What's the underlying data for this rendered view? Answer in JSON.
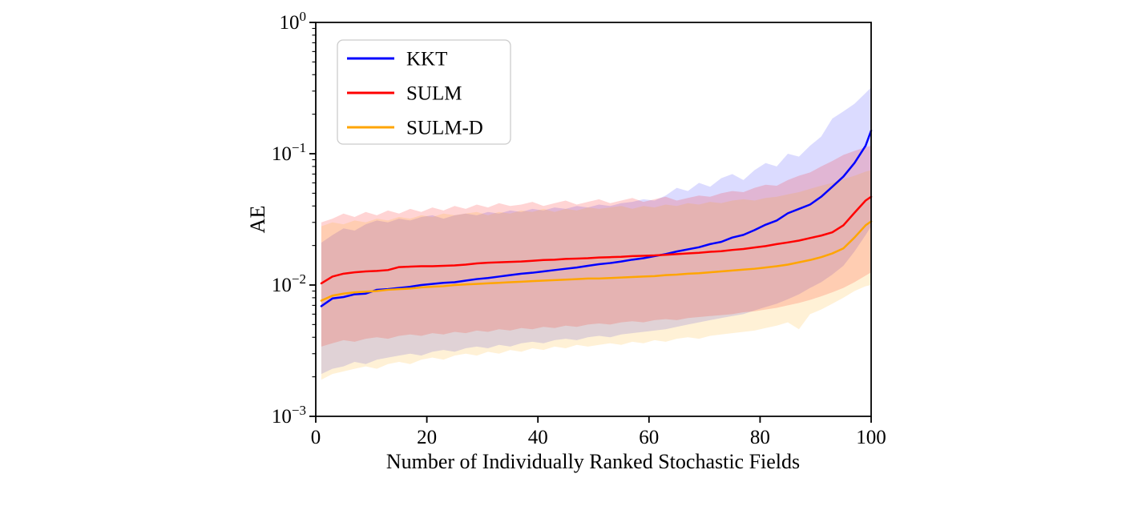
{
  "chart_data": {
    "type": "line",
    "title": "",
    "xlabel": "Number of Individually Ranked Stochastic Fields",
    "ylabel": "AE",
    "xlim": [
      0,
      100
    ],
    "ylim_log10": [
      -3,
      0
    ],
    "x_ticks": [
      0,
      20,
      40,
      60,
      80,
      100
    ],
    "y_tick_exponents": [
      0,
      -1,
      -2,
      -3
    ],
    "y_scale": "log",
    "grid": false,
    "legend_position": "upper-left",
    "axis_color": "#000000",
    "legend_border_color": "#cccccc",
    "x": [
      1,
      3,
      5,
      7,
      9,
      11,
      13,
      15,
      17,
      19,
      21,
      23,
      25,
      27,
      29,
      31,
      33,
      35,
      37,
      39,
      41,
      43,
      45,
      47,
      49,
      51,
      53,
      55,
      57,
      59,
      61,
      63,
      65,
      67,
      69,
      71,
      73,
      75,
      77,
      79,
      81,
      83,
      85,
      87,
      89,
      91,
      93,
      95,
      97,
      99,
      100
    ],
    "series": [
      {
        "name": "KKT",
        "color": "#0000ff",
        "band_opacity": 0.14,
        "values": [
          0.0069,
          0.0079,
          0.0081,
          0.0085,
          0.0086,
          0.0092,
          0.0093,
          0.0095,
          0.0097,
          0.01,
          0.0102,
          0.0104,
          0.0105,
          0.0108,
          0.0111,
          0.0113,
          0.0116,
          0.0119,
          0.0122,
          0.0124,
          0.0127,
          0.013,
          0.0133,
          0.0136,
          0.014,
          0.0144,
          0.0147,
          0.0151,
          0.0156,
          0.016,
          0.0166,
          0.0172,
          0.018,
          0.0187,
          0.0194,
          0.0205,
          0.0213,
          0.023,
          0.0241,
          0.0262,
          0.0288,
          0.031,
          0.0352,
          0.038,
          0.041,
          0.047,
          0.056,
          0.067,
          0.085,
          0.115,
          0.15
        ],
        "band_upper": [
          0.021,
          0.024,
          0.027,
          0.026,
          0.029,
          0.031,
          0.03,
          0.032,
          0.031,
          0.033,
          0.034,
          0.032,
          0.034,
          0.035,
          0.034,
          0.036,
          0.035,
          0.037,
          0.036,
          0.038,
          0.037,
          0.039,
          0.038,
          0.04,
          0.039,
          0.041,
          0.04,
          0.042,
          0.043,
          0.045,
          0.044,
          0.048,
          0.055,
          0.052,
          0.06,
          0.056,
          0.065,
          0.07,
          0.063,
          0.075,
          0.085,
          0.08,
          0.1,
          0.095,
          0.115,
          0.135,
          0.185,
          0.21,
          0.24,
          0.29,
          0.32
        ],
        "band_lower": [
          0.0021,
          0.0023,
          0.0024,
          0.0026,
          0.0025,
          0.0027,
          0.0028,
          0.0029,
          0.003,
          0.0029,
          0.0031,
          0.0032,
          0.0031,
          0.0033,
          0.0034,
          0.0033,
          0.0035,
          0.0034,
          0.0036,
          0.0037,
          0.0036,
          0.0038,
          0.0039,
          0.0038,
          0.004,
          0.0041,
          0.004,
          0.0042,
          0.0043,
          0.0044,
          0.0045,
          0.0046,
          0.0048,
          0.005,
          0.0052,
          0.0054,
          0.0056,
          0.0058,
          0.006,
          0.0064,
          0.0068,
          0.0072,
          0.0078,
          0.0085,
          0.0095,
          0.0105,
          0.012,
          0.014,
          0.018,
          0.024,
          0.028
        ]
      },
      {
        "name": "SULM",
        "color": "#ff0000",
        "band_opacity": 0.17,
        "values": [
          0.0103,
          0.0116,
          0.0122,
          0.0125,
          0.0127,
          0.0128,
          0.013,
          0.0137,
          0.0138,
          0.0139,
          0.0139,
          0.014,
          0.0141,
          0.0143,
          0.0146,
          0.0148,
          0.0149,
          0.015,
          0.0151,
          0.0153,
          0.0155,
          0.0156,
          0.0158,
          0.0159,
          0.016,
          0.0162,
          0.0163,
          0.0164,
          0.0166,
          0.0167,
          0.0168,
          0.017,
          0.0172,
          0.0174,
          0.0176,
          0.0179,
          0.0181,
          0.0185,
          0.0188,
          0.0193,
          0.0198,
          0.0205,
          0.0211,
          0.0218,
          0.0228,
          0.0238,
          0.0252,
          0.0285,
          0.0355,
          0.044,
          0.047
        ],
        "band_upper": [
          0.03,
          0.032,
          0.035,
          0.033,
          0.036,
          0.034,
          0.037,
          0.035,
          0.038,
          0.036,
          0.039,
          0.037,
          0.04,
          0.038,
          0.041,
          0.039,
          0.042,
          0.04,
          0.041,
          0.043,
          0.04,
          0.042,
          0.044,
          0.041,
          0.043,
          0.045,
          0.042,
          0.044,
          0.046,
          0.043,
          0.045,
          0.047,
          0.044,
          0.046,
          0.048,
          0.047,
          0.05,
          0.052,
          0.051,
          0.055,
          0.058,
          0.057,
          0.063,
          0.068,
          0.072,
          0.08,
          0.088,
          0.098,
          0.105,
          0.112,
          0.115
        ],
        "band_lower": [
          0.0034,
          0.0036,
          0.0038,
          0.0037,
          0.0039,
          0.004,
          0.0039,
          0.0041,
          0.0042,
          0.0041,
          0.0043,
          0.0042,
          0.0044,
          0.0043,
          0.0045,
          0.0044,
          0.0046,
          0.0045,
          0.0047,
          0.0046,
          0.0048,
          0.0047,
          0.0049,
          0.0048,
          0.005,
          0.0051,
          0.005,
          0.0052,
          0.0053,
          0.0052,
          0.0054,
          0.0055,
          0.0054,
          0.0056,
          0.0057,
          0.0058,
          0.0059,
          0.006,
          0.0062,
          0.0063,
          0.0065,
          0.0067,
          0.007,
          0.0073,
          0.0077,
          0.0082,
          0.0088,
          0.0095,
          0.0105,
          0.0118,
          0.0125
        ]
      },
      {
        "name": "SULM-D",
        "color": "#ffa500",
        "band_opacity": 0.16,
        "values": [
          0.0076,
          0.0083,
          0.0086,
          0.0088,
          0.0089,
          0.009,
          0.0092,
          0.0093,
          0.0094,
          0.0096,
          0.0097,
          0.0098,
          0.01,
          0.0101,
          0.0102,
          0.0103,
          0.0104,
          0.0105,
          0.0106,
          0.0107,
          0.0108,
          0.0109,
          0.011,
          0.0111,
          0.0112,
          0.0112,
          0.0113,
          0.0114,
          0.0115,
          0.0116,
          0.0117,
          0.0119,
          0.012,
          0.0122,
          0.0123,
          0.0125,
          0.0127,
          0.0129,
          0.0131,
          0.0133,
          0.0136,
          0.0139,
          0.0143,
          0.0149,
          0.0155,
          0.0163,
          0.0174,
          0.019,
          0.023,
          0.0285,
          0.0305
        ],
        "band_upper": [
          0.028,
          0.03,
          0.029,
          0.031,
          0.03,
          0.032,
          0.031,
          0.033,
          0.032,
          0.034,
          0.033,
          0.035,
          0.034,
          0.035,
          0.036,
          0.034,
          0.036,
          0.035,
          0.037,
          0.036,
          0.038,
          0.036,
          0.038,
          0.037,
          0.039,
          0.038,
          0.039,
          0.04,
          0.038,
          0.04,
          0.039,
          0.041,
          0.04,
          0.042,
          0.041,
          0.043,
          0.042,
          0.044,
          0.045,
          0.044,
          0.046,
          0.047,
          0.049,
          0.051,
          0.054,
          0.057,
          0.06,
          0.064,
          0.068,
          0.073,
          0.075
        ],
        "band_lower": [
          0.0019,
          0.0021,
          0.0022,
          0.0023,
          0.0024,
          0.0023,
          0.0025,
          0.0026,
          0.0025,
          0.0027,
          0.0028,
          0.0027,
          0.0029,
          0.003,
          0.0029,
          0.0031,
          0.003,
          0.0032,
          0.0031,
          0.0033,
          0.0032,
          0.0034,
          0.0033,
          0.0035,
          0.0034,
          0.0035,
          0.0036,
          0.0035,
          0.0037,
          0.0036,
          0.0038,
          0.0037,
          0.0039,
          0.004,
          0.0039,
          0.0041,
          0.0042,
          0.0043,
          0.0044,
          0.0045,
          0.0047,
          0.0049,
          0.0052,
          0.0046,
          0.006,
          0.0065,
          0.0072,
          0.008,
          0.009,
          0.0098,
          0.01
        ]
      }
    ]
  }
}
